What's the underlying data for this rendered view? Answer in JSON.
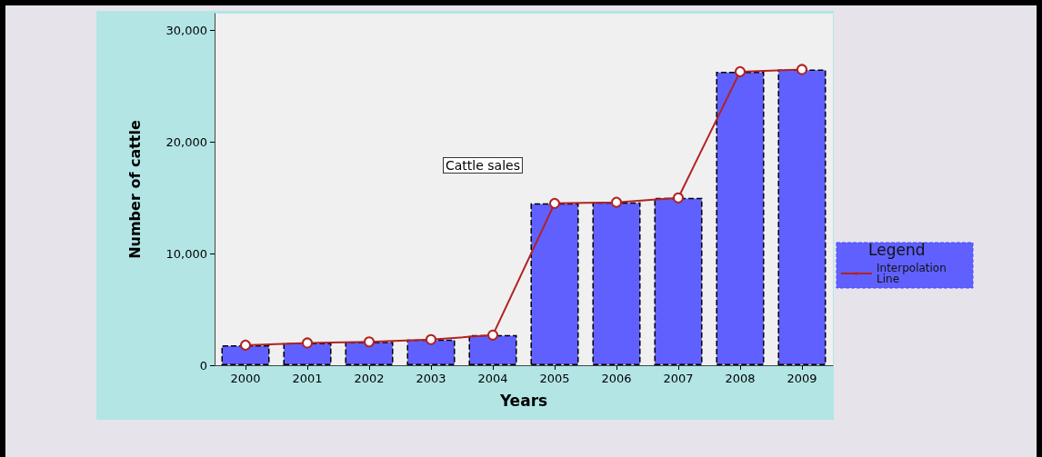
{
  "chart_data": {
    "type": "bar",
    "xlabel": "Years",
    "ylabel": "Number of cattle",
    "legend_title": "Legend",
    "annotations": [
      "Cattle sales"
    ],
    "categories": [
      "2000",
      "2001",
      "2002",
      "2003",
      "2004",
      "2005",
      "2006",
      "2007",
      "2008",
      "2009"
    ],
    "series": [
      {
        "color": "#6060ff",
        "values": [
          1800,
          2000,
          2100,
          2300,
          2700,
          14500,
          14600,
          15000,
          26300,
          26500
        ]
      },
      {
        "type": "line",
        "name": "Interpolation Line",
        "color": "#b22222",
        "values": [
          1800,
          2000,
          2100,
          2300,
          2700,
          14500,
          14600,
          15000,
          26300,
          26500
        ]
      }
    ],
    "ylim": [
      0,
      31500
    ],
    "yticks": [
      {
        "value": 0,
        "label": "0"
      },
      {
        "value": 10000,
        "label": "10,000"
      },
      {
        "value": 20000,
        "label": "20,000"
      },
      {
        "value": 30000,
        "label": "30,000"
      }
    ],
    "grid": false,
    "legend": "right",
    "marker": "circle",
    "line_style": "solid"
  }
}
